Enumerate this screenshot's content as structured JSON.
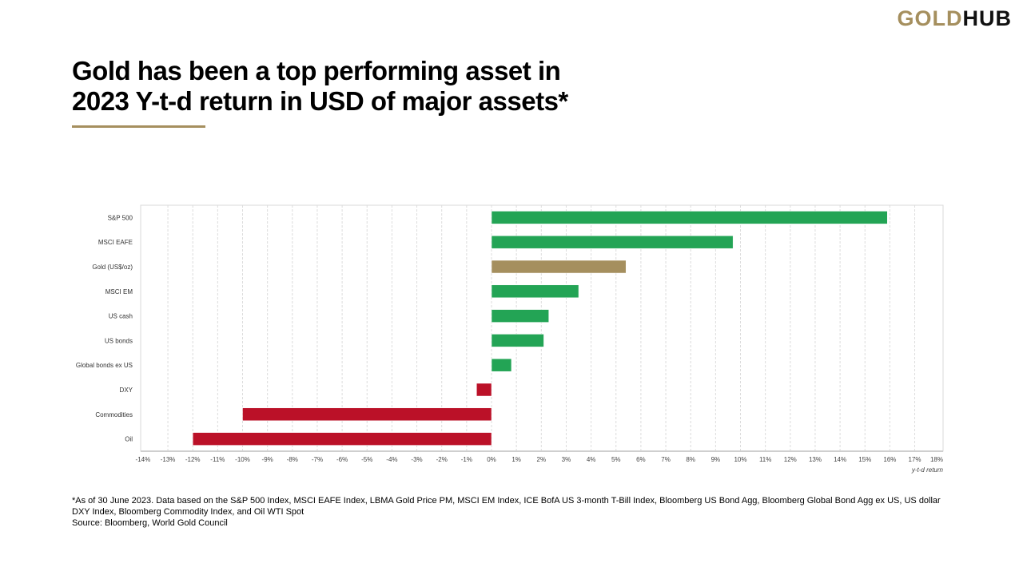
{
  "brand": {
    "logo_gold": "GOLD",
    "logo_hub": "HUB"
  },
  "title_lines": [
    "Gold has been a top performing asset in",
    "2023 Y-t-d return in USD of major assets*"
  ],
  "footnote": "*As of 30 June 2023. Data based on the S&P 500 Index, MSCI EAFE Index, LBMA Gold Price PM, MSCI EM Index, ICE BofA US 3-month T-Bill Index, Bloomberg US Bond Agg, Bloomberg Global Bond Agg ex US, US dollar DXY Index, Bloomberg Commodity Index, and Oil WTI Spot",
  "source": "Source: Bloomberg, World Gold Council",
  "colors": {
    "positive": "#23a455",
    "gold": "#a58f5e",
    "negative": "#bb1128",
    "accent": "#a58f5e"
  },
  "chart_data": {
    "type": "bar",
    "orientation": "horizontal",
    "categories": [
      "S&P 500",
      "MSCI EAFE",
      "Gold (US$/oz)",
      "MSCI EM",
      "US cash",
      "US bonds",
      "Global bonds ex US",
      "DXY",
      "Commodities",
      "Oil"
    ],
    "values": [
      15.9,
      9.7,
      5.4,
      3.5,
      2.3,
      2.1,
      0.8,
      -0.6,
      -10.0,
      -12.0
    ],
    "xlabel": "y-t-d return",
    "xlim": [
      -14,
      18
    ],
    "xticks": [
      "-14%",
      "-13%",
      "-12%",
      "-11%",
      "-10%",
      "-9%",
      "-8%",
      "-7%",
      "-6%",
      "-5%",
      "-4%",
      "-3%",
      "-2%",
      "-1%",
      "0%",
      "1%",
      "2%",
      "3%",
      "4%",
      "5%",
      "6%",
      "7%",
      "8%",
      "9%",
      "10%",
      "11%",
      "12%",
      "13%",
      "14%",
      "15%",
      "16%",
      "17%",
      "18%"
    ],
    "grid": "vertical dashed",
    "highlight": "Gold (US$/oz)"
  }
}
